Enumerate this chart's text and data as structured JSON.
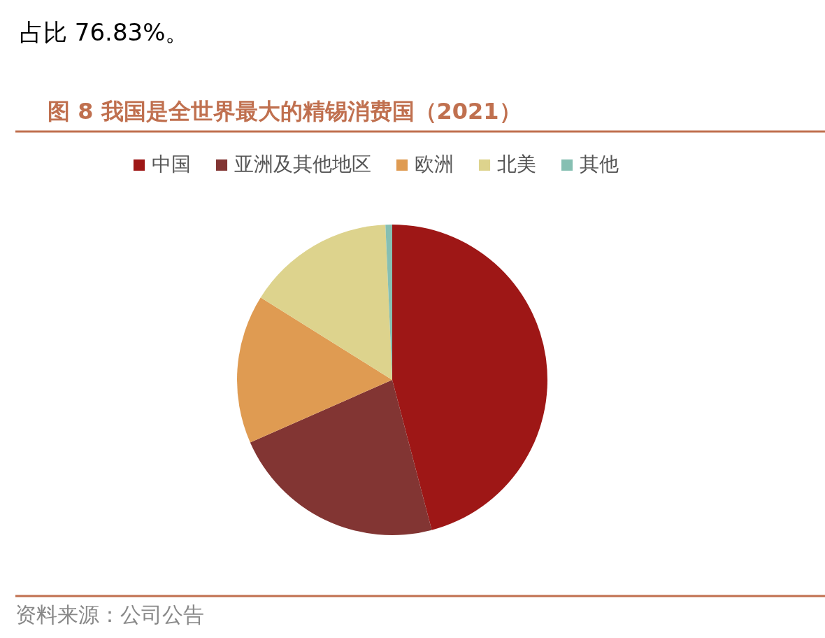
{
  "chart_data": {
    "type": "pie",
    "title": "图 8 我国是全世界最大的精锡消费国（2021）",
    "categories": [
      "中国",
      "亚洲及其他地区",
      "欧洲",
      "北美",
      "其他"
    ],
    "values": [
      45.9,
      22.5,
      15.5,
      15.4,
      0.7
    ],
    "colors": [
      "#9e1716",
      "#823533",
      "#df9b52",
      "#ddd38d",
      "#86bfb2"
    ],
    "legend": "top",
    "annotations": [
      "占比 76.83%。",
      "资料来源：公司公告"
    ]
  }
}
